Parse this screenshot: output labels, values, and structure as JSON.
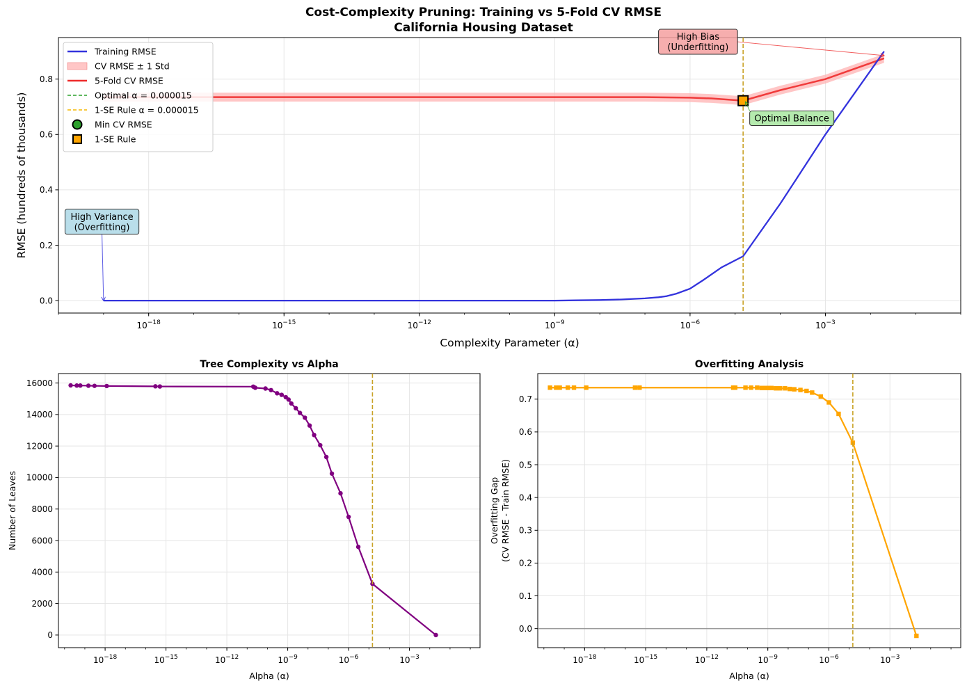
{
  "suptitle": {
    "line1": "Cost-Complexity Pruning: Training vs 5-Fold CV RMSE",
    "line2": "California Housing Dataset"
  },
  "colors": {
    "train": "#3333dd",
    "cv": "#ee2b2b",
    "cv_band": "#ffb3b3",
    "optimal": "#2ca02c",
    "onese": "#f5b800",
    "vline": "#c9a227",
    "leaves": "#800080",
    "gap": "#ffa500",
    "zero_line": "#999999",
    "grid": "#e5e5e5"
  },
  "chart_data": [
    {
      "type": "line",
      "panel": "top",
      "xscale": "log",
      "xlim": [
        1e-20,
        1
      ],
      "ylim": [
        -0.045,
        0.95
      ],
      "xlabel": "Complexity Parameter (α)",
      "ylabel": "RMSE (hundreds of thousands)",
      "xticks": [
        1e-18,
        1e-15,
        1e-12,
        1e-09,
        1e-06,
        0.001
      ],
      "xtick_labels": [
        {
          "base": "10",
          "exp": "−18"
        },
        {
          "base": "10",
          "exp": "−15"
        },
        {
          "base": "10",
          "exp": "−12"
        },
        {
          "base": "10",
          "exp": "−9"
        },
        {
          "base": "10",
          "exp": "−6"
        },
        {
          "base": "10",
          "exp": "−3"
        }
      ],
      "yticks": [
        0.0,
        0.2,
        0.4,
        0.6,
        0.8
      ],
      "ytick_labels": [
        "0.0",
        "0.2",
        "0.4",
        "0.6",
        "0.8"
      ],
      "grid": true,
      "legend_position": "upper-left",
      "legend": [
        {
          "kind": "line",
          "color_key": "train",
          "label": "Training RMSE"
        },
        {
          "kind": "band",
          "color_key": "cv_band",
          "label": "CV RMSE ± 1 Std"
        },
        {
          "kind": "line",
          "color_key": "cv",
          "label": "5-Fold CV RMSE"
        },
        {
          "kind": "dash",
          "color_key": "optimal",
          "label": "Optimal α = 0.000015"
        },
        {
          "kind": "dash",
          "color_key": "onese",
          "label": "1-SE Rule α = 0.000015"
        },
        {
          "kind": "circle",
          "color_key": "optimal",
          "label": "Min CV RMSE"
        },
        {
          "kind": "square",
          "color_key": "gap",
          "label": "1-SE Rule"
        }
      ],
      "series": [
        {
          "name": "Training RMSE",
          "x": [
            1e-19,
            1e-18,
            1e-17,
            1e-16,
            1e-15,
            1e-14,
            1e-13,
            1e-12,
            1e-11,
            1e-10,
            1e-09,
            3e-09,
            1e-08,
            3e-08,
            1e-07,
            2e-07,
            3e-07,
            5e-07,
            1e-06,
            2e-06,
            5e-06,
            1.5e-05,
            0.0001,
            0.001,
            0.02
          ],
          "y": [
            0.0,
            0.0,
            0.0,
            0.0,
            0.0,
            0.0,
            0.0,
            0.0,
            0.0,
            0.0,
            0.0,
            0.001,
            0.002,
            0.004,
            0.008,
            0.012,
            0.016,
            0.025,
            0.043,
            0.075,
            0.12,
            0.16,
            0.35,
            0.6,
            0.9
          ]
        },
        {
          "name": "5-Fold CV RMSE",
          "x": [
            1e-19,
            1e-18,
            1e-16,
            1e-14,
            1e-12,
            1e-10,
            1e-08,
            1e-07,
            1e-06,
            3e-06,
            1.5e-05,
            0.0001,
            0.001,
            0.02
          ],
          "y": [
            0.735,
            0.735,
            0.735,
            0.735,
            0.735,
            0.735,
            0.735,
            0.735,
            0.733,
            0.73,
            0.722,
            0.76,
            0.8,
            0.875
          ],
          "std": [
            0.016,
            0.016,
            0.016,
            0.016,
            0.016,
            0.016,
            0.016,
            0.016,
            0.016,
            0.016,
            0.016,
            0.016,
            0.016,
            0.016
          ]
        }
      ],
      "vlines": [
        {
          "x": 1.5e-05,
          "color_key": "vline"
        }
      ],
      "markers": [
        {
          "x": 1.5e-05,
          "y": 0.722,
          "shape": "square",
          "color_key": "gap"
        }
      ],
      "annotations": [
        {
          "lines": [
            "High Variance",
            "(Overfitting)"
          ],
          "box_color": "#add8e6",
          "box_x": 1.4e-20,
          "box_y": 0.33,
          "arrow_x": 1e-19,
          "arrow_y": 0.0,
          "arrow_color": "#3333dd"
        },
        {
          "lines": [
            "High Bias",
            "(Underfitting)"
          ],
          "box_color": "#f4a0a0",
          "box_x": 2e-07,
          "box_y": 0.98,
          "arrow_x": 0.02,
          "arrow_y": 0.885,
          "arrow_color": "#ee3333"
        },
        {
          "lines": [
            "Optimal Balance"
          ],
          "box_color": "#a8e6a0",
          "box_x": 2.1e-05,
          "box_y": 0.685,
          "arrow_x": 1.7e-05,
          "arrow_y": 0.718,
          "arrow_color": "#2ca02c"
        }
      ]
    },
    {
      "type": "line",
      "panel": "bottom-left",
      "title": "Tree Complexity vs Alpha",
      "xscale": "log",
      "xlim": [
        5e-21,
        3
      ],
      "ylim": [
        -800,
        16600
      ],
      "xlabel": "Alpha (α)",
      "ylabel": "Number of Leaves",
      "xticks": [
        1e-18,
        1e-15,
        1e-12,
        1e-09,
        1e-06,
        0.001
      ],
      "xtick_labels": [
        {
          "base": "10",
          "exp": "−18"
        },
        {
          "base": "10",
          "exp": "−15"
        },
        {
          "base": "10",
          "exp": "−12"
        },
        {
          "base": "10",
          "exp": "−9"
        },
        {
          "base": "10",
          "exp": "−6"
        },
        {
          "base": "10",
          "exp": "−3"
        }
      ],
      "yticks": [
        0,
        2000,
        4000,
        6000,
        8000,
        10000,
        12000,
        14000,
        16000
      ],
      "ytick_labels": [
        "0",
        "2000",
        "4000",
        "6000",
        "8000",
        "10000",
        "12000",
        "14000",
        "16000"
      ],
      "grid": true,
      "series": [
        {
          "name": "Number of Leaves",
          "x": [
            2e-20,
            4e-20,
            6e-20,
            1.5e-19,
            3e-19,
            1.2e-18,
            3e-16,
            5e-16,
            2e-11,
            2.5e-11,
            8e-11,
            1.5e-10,
            3e-10,
            5e-10,
            8e-10,
            1.1e-09,
            1.5e-09,
            2.5e-09,
            4e-09,
            7e-09,
            1.2e-08,
            2e-08,
            4e-08,
            8e-08,
            1.5e-07,
            4e-07,
            1e-06,
            3e-06,
            1.5e-05,
            0.02
          ],
          "y": [
            15850,
            15840,
            15840,
            15830,
            15820,
            15810,
            15790,
            15780,
            15770,
            15700,
            15650,
            15550,
            15350,
            15250,
            15100,
            14950,
            14700,
            14400,
            14100,
            13800,
            13300,
            12700,
            12050,
            11300,
            10250,
            9000,
            7500,
            5600,
            3250,
            0
          ]
        }
      ],
      "vlines": [
        {
          "x": 1.5e-05,
          "color_key": "vline"
        }
      ]
    },
    {
      "type": "line",
      "panel": "bottom-right",
      "title": "Overfitting Analysis",
      "xscale": "log",
      "xlim": [
        5e-21,
        3
      ],
      "ylim": [
        -0.058,
        0.778
      ],
      "xlabel": "Alpha (α)",
      "ylabel": "Overfitting Gap",
      "ylabel_line2": "(CV RMSE - Train RMSE)",
      "xticks": [
        1e-18,
        1e-15,
        1e-12,
        1e-09,
        1e-06,
        0.001
      ],
      "xtick_labels": [
        {
          "base": "10",
          "exp": "−18"
        },
        {
          "base": "10",
          "exp": "−15"
        },
        {
          "base": "10",
          "exp": "−12"
        },
        {
          "base": "10",
          "exp": "−9"
        },
        {
          "base": "10",
          "exp": "−6"
        },
        {
          "base": "10",
          "exp": "−3"
        }
      ],
      "yticks": [
        0.0,
        0.1,
        0.2,
        0.3,
        0.4,
        0.5,
        0.6,
        0.7
      ],
      "ytick_labels": [
        "0.0",
        "0.1",
        "0.2",
        "0.3",
        "0.4",
        "0.5",
        "0.6",
        "0.7"
      ],
      "grid": true,
      "hlines": [
        {
          "y": 0.0,
          "color_key": "zero_line"
        }
      ],
      "series": [
        {
          "name": "Overfitting Gap",
          "x": [
            2e-20,
            4e-20,
            6e-20,
            1.5e-19,
            3e-19,
            1.2e-18,
            3e-16,
            5e-16,
            2e-11,
            2.5e-11,
            8e-11,
            1.5e-10,
            3e-10,
            5e-10,
            8e-10,
            1.1e-09,
            1.5e-09,
            2.5e-09,
            4e-09,
            7e-09,
            1.2e-08,
            2e-08,
            4e-08,
            8e-08,
            1.5e-07,
            4e-07,
            1e-06,
            3e-06,
            1.5e-05,
            0.02
          ],
          "y": [
            0.735,
            0.735,
            0.735,
            0.735,
            0.735,
            0.735,
            0.735,
            0.735,
            0.735,
            0.735,
            0.735,
            0.735,
            0.735,
            0.734,
            0.734,
            0.734,
            0.734,
            0.733,
            0.733,
            0.733,
            0.731,
            0.73,
            0.728,
            0.725,
            0.72,
            0.708,
            0.69,
            0.655,
            0.567,
            -0.022
          ]
        }
      ],
      "vlines": [
        {
          "x": 1.5e-05,
          "color_key": "vline"
        }
      ]
    }
  ]
}
